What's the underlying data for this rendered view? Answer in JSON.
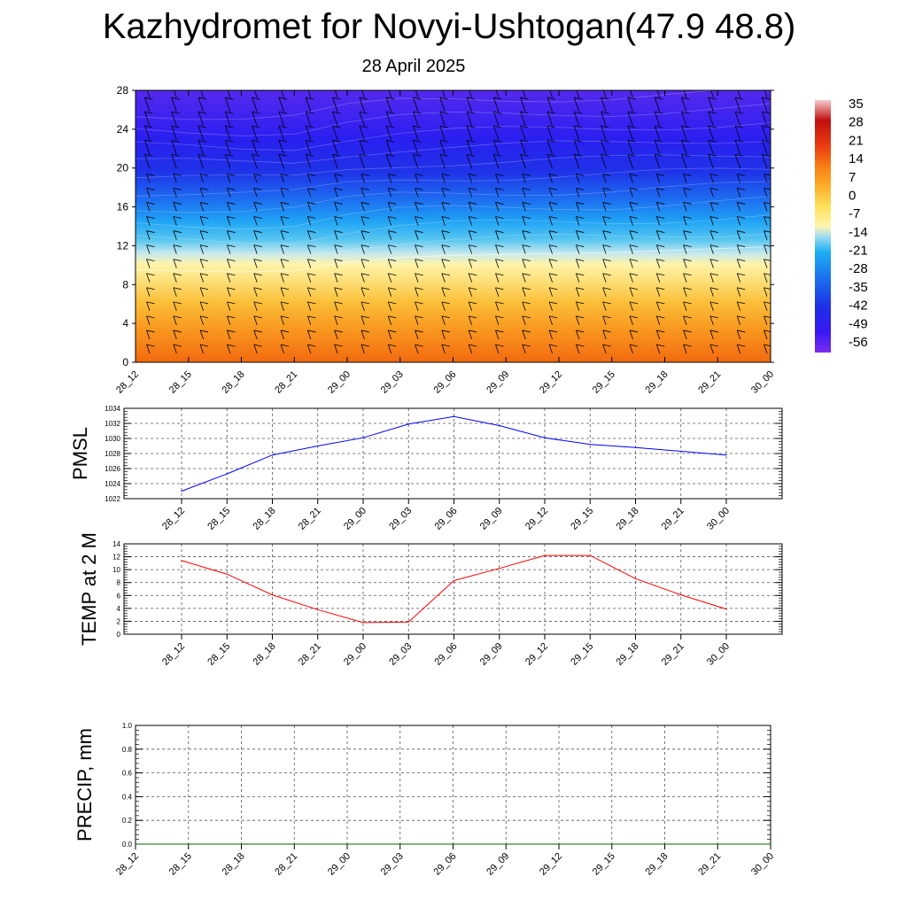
{
  "title": "Kazhydromet for Novyi-Ushtogan(47.9 48.8)",
  "subtitle": "28 April 2025",
  "time_labels": [
    "28_12",
    "28_15",
    "28_18",
    "28_21",
    "29_00",
    "29_03",
    "29_06",
    "29_09",
    "29_12",
    "29_15",
    "29_18",
    "29_21",
    "30_00"
  ],
  "colors": {
    "pmsl_line": "#0000ff",
    "temp_line": "#ff0000",
    "precip_line": "#006400"
  },
  "chart_data": [
    {
      "id": "cross_section",
      "type": "heatmap",
      "xlabel": "",
      "ylabel": "",
      "x": [
        "28_12",
        "28_15",
        "28_18",
        "28_21",
        "29_00",
        "29_03",
        "29_06",
        "29_09",
        "29_12",
        "29_15",
        "29_18",
        "29_21",
        "30_00"
      ],
      "y_ticks": [
        0,
        4,
        8,
        12,
        16,
        20,
        24,
        28
      ],
      "ylim": [
        0,
        28
      ],
      "colorbar_ticks": [
        35,
        28,
        21,
        14,
        7,
        0,
        -7,
        -14,
        -21,
        -28,
        -35,
        -42,
        -49,
        -56
      ],
      "freezing_level_height": [
        9.5,
        9.4,
        9.3,
        9.4,
        10.3,
        10.8,
        11.0,
        11.1,
        11.2,
        11.3,
        11.5,
        11.7,
        11.9
      ],
      "wind_barbs": true
    },
    {
      "id": "pmsl",
      "type": "line",
      "ylabel": "PMSL",
      "x": [
        "28_12",
        "28_15",
        "28_18",
        "28_21",
        "29_00",
        "29_03",
        "29_06",
        "29_09",
        "29_12",
        "29_15",
        "29_18",
        "29_21",
        "30_00"
      ],
      "y_ticks": [
        1022,
        1024,
        1026,
        1028,
        1030,
        1032,
        1034
      ],
      "ylim": [
        1022,
        1034
      ],
      "series": [
        {
          "values": [
            1023.0,
            1025.3,
            1027.8,
            1029.0,
            1030.1,
            1031.9,
            1032.9,
            1031.7,
            1030.1,
            1029.2,
            1028.8,
            1028.3,
            1027.8
          ]
        }
      ],
      "grid": true
    },
    {
      "id": "temp2m",
      "type": "line",
      "ylabel": "TEMP at 2 M",
      "x": [
        "28_12",
        "28_15",
        "28_18",
        "28_21",
        "29_00",
        "29_03",
        "29_06",
        "29_09",
        "29_12",
        "29_15",
        "29_18",
        "29_21",
        "30_00"
      ],
      "y_ticks": [
        0,
        2,
        4,
        6,
        8,
        10,
        12,
        14
      ],
      "ylim": [
        0,
        14
      ],
      "series": [
        {
          "values": [
            11.4,
            9.3,
            6.1,
            3.8,
            1.8,
            1.9,
            8.3,
            10.2,
            12.2,
            12.2,
            8.6,
            6.1,
            3.9
          ]
        }
      ],
      "grid": true
    },
    {
      "id": "precip",
      "type": "line",
      "ylabel": "PRECIP, mm",
      "x": [
        "28_12",
        "28_15",
        "28_18",
        "28_21",
        "29_00",
        "29_03",
        "29_06",
        "29_09",
        "29_12",
        "29_15",
        "29_18",
        "29_21",
        "30_00"
      ],
      "y_ticks": [
        "0.0",
        "0.2",
        "0.4",
        "0.6",
        "0.8",
        "1.0"
      ],
      "ylim": [
        0,
        1
      ],
      "series": [
        {
          "values": [
            0,
            0,
            0,
            0,
            0,
            0,
            0,
            0,
            0,
            0,
            0,
            0,
            0
          ]
        }
      ],
      "grid": true
    }
  ]
}
